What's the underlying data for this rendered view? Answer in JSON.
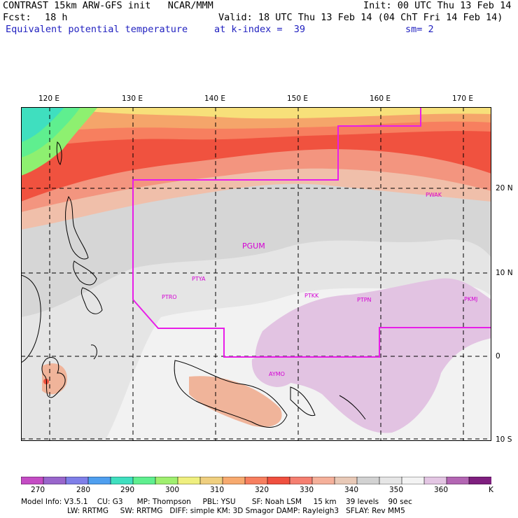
{
  "header": {
    "model_line": "CONTRAST 15km ARW-GFS init   NCAR/MMM",
    "init": "Init: 00 UTC Thu 13 Feb 14",
    "fcst_label": "Fcst:",
    "fcst_value": "18 h",
    "valid": "Valid: 18 UTC Thu 13 Feb 14 (04 ChT Fri 14 Feb 14)",
    "field": "Equivalent potential temperature",
    "level": "at k-index =  39",
    "smoothing": "sm= 2"
  },
  "map": {
    "lon_labels": [
      "120 E",
      "130 E",
      "140 E",
      "150 E",
      "160 E",
      "170 E"
    ],
    "lat_labels": [
      "20 N",
      "10 N",
      "0",
      "10 S"
    ],
    "stations": [
      {
        "id": "PWAK"
      },
      {
        "id": "PGUM"
      },
      {
        "id": "PTYA"
      },
      {
        "id": "PTRO"
      },
      {
        "id": "PTKK"
      },
      {
        "id": "PTPN"
      },
      {
        "id": "PKMJ"
      },
      {
        "id": "AYMO"
      }
    ],
    "domain_color": "#e81ee8"
  },
  "colorbar": {
    "tick_labels": [
      "270",
      "280",
      "290",
      "300",
      "310",
      "320",
      "330",
      "340",
      "350",
      "360"
    ],
    "unit": "K",
    "colors": [
      "#c44cc4",
      "#9966cc",
      "#7f7fe8",
      "#4f9fef",
      "#3fdfbf",
      "#5fef8f",
      "#9fef6f",
      "#efef7f",
      "#efcf7f",
      "#f7aa6f",
      "#f77f5f",
      "#f0503f",
      "#f57f70",
      "#f5b09a",
      "#e8c9b7",
      "#d2d2d2",
      "#e6e6e6",
      "#f3f3f3",
      "#e3c6e3",
      "#b366b3",
      "#7f1f7f"
    ]
  },
  "footer": {
    "line1": "Model Info: V3.5.1    CU: G3      MP: Thompson     PBL: YSU       SF: Noah LSM     15 km    39 levels    90 sec",
    "line2": "LW: RRTMG     SW: RRTMG   DIFF: simple KM: 3D Smagor DAMP: Rayleigh3   SFLAY: Rev MM5"
  }
}
